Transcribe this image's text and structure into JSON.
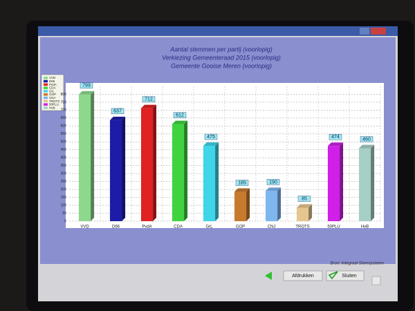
{
  "window": {
    "source": "Bron: Integraal Stemsysteem",
    "buttons": [
      "Afdrukken",
      "Sluiten"
    ]
  },
  "chart_data": {
    "type": "bar",
    "title": "Aantal stemmen per partij (voorlopig)",
    "subtitles": [
      "Verkiezing Gemeenteraad 2015 (voorlopig)",
      "Gemeente Gooise Meren (voorlopig)"
    ],
    "categories": [
      "VVD",
      "D66",
      "PvdA",
      "CDA",
      "GrL",
      "GOP",
      "CNJ",
      "TROTS",
      "50PLU",
      "HvB"
    ],
    "values": [
      799,
      637,
      712,
      612,
      475,
      185,
      190,
      85,
      474,
      460
    ],
    "colors": [
      "#8ed88e",
      "#1c1ca8",
      "#e02222",
      "#3fd43f",
      "#3fd6ea",
      "#c67a2e",
      "#7eb6f0",
      "#e6c690",
      "#d01fe8",
      "#a6cfc6"
    ],
    "ylim": [
      0,
      850
    ],
    "yticks": [
      0,
      50,
      100,
      150,
      200,
      250,
      300,
      350,
      400,
      450,
      500,
      550,
      600,
      650,
      700,
      750,
      800
    ],
    "grid": true
  }
}
